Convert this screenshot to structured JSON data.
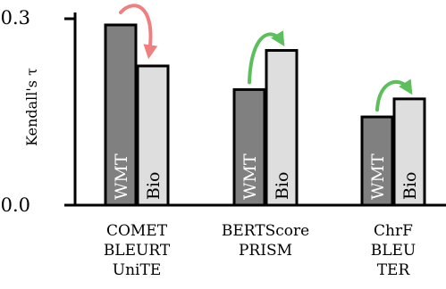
{
  "chart_data": {
    "type": "bar",
    "title": "",
    "xlabel": "",
    "ylabel": "Kendall's τ",
    "ylim": [
      0.0,
      0.3
    ],
    "yticks": [
      "0.3",
      "0.0"
    ],
    "grid": false,
    "legend": "none",
    "categories": [
      [
        "COMET",
        "BLEURT",
        "UniTE"
      ],
      [
        "BERTScore",
        "PRISM"
      ],
      [
        "ChrF",
        "BLEU",
        "TER"
      ]
    ],
    "series": [
      {
        "name": "WMT",
        "color": "#808080",
        "values": [
          0.29,
          0.186,
          0.142
        ]
      },
      {
        "name": "Bio",
        "color": "#dedede",
        "values": [
          0.224,
          0.249,
          0.171
        ]
      }
    ],
    "annotations": [
      {
        "group": 0,
        "direction": "down",
        "color": "#f08080"
      },
      {
        "group": 1,
        "direction": "up",
        "color": "#5cbf5c"
      },
      {
        "group": 2,
        "direction": "up",
        "color": "#5cbf5c"
      }
    ]
  }
}
